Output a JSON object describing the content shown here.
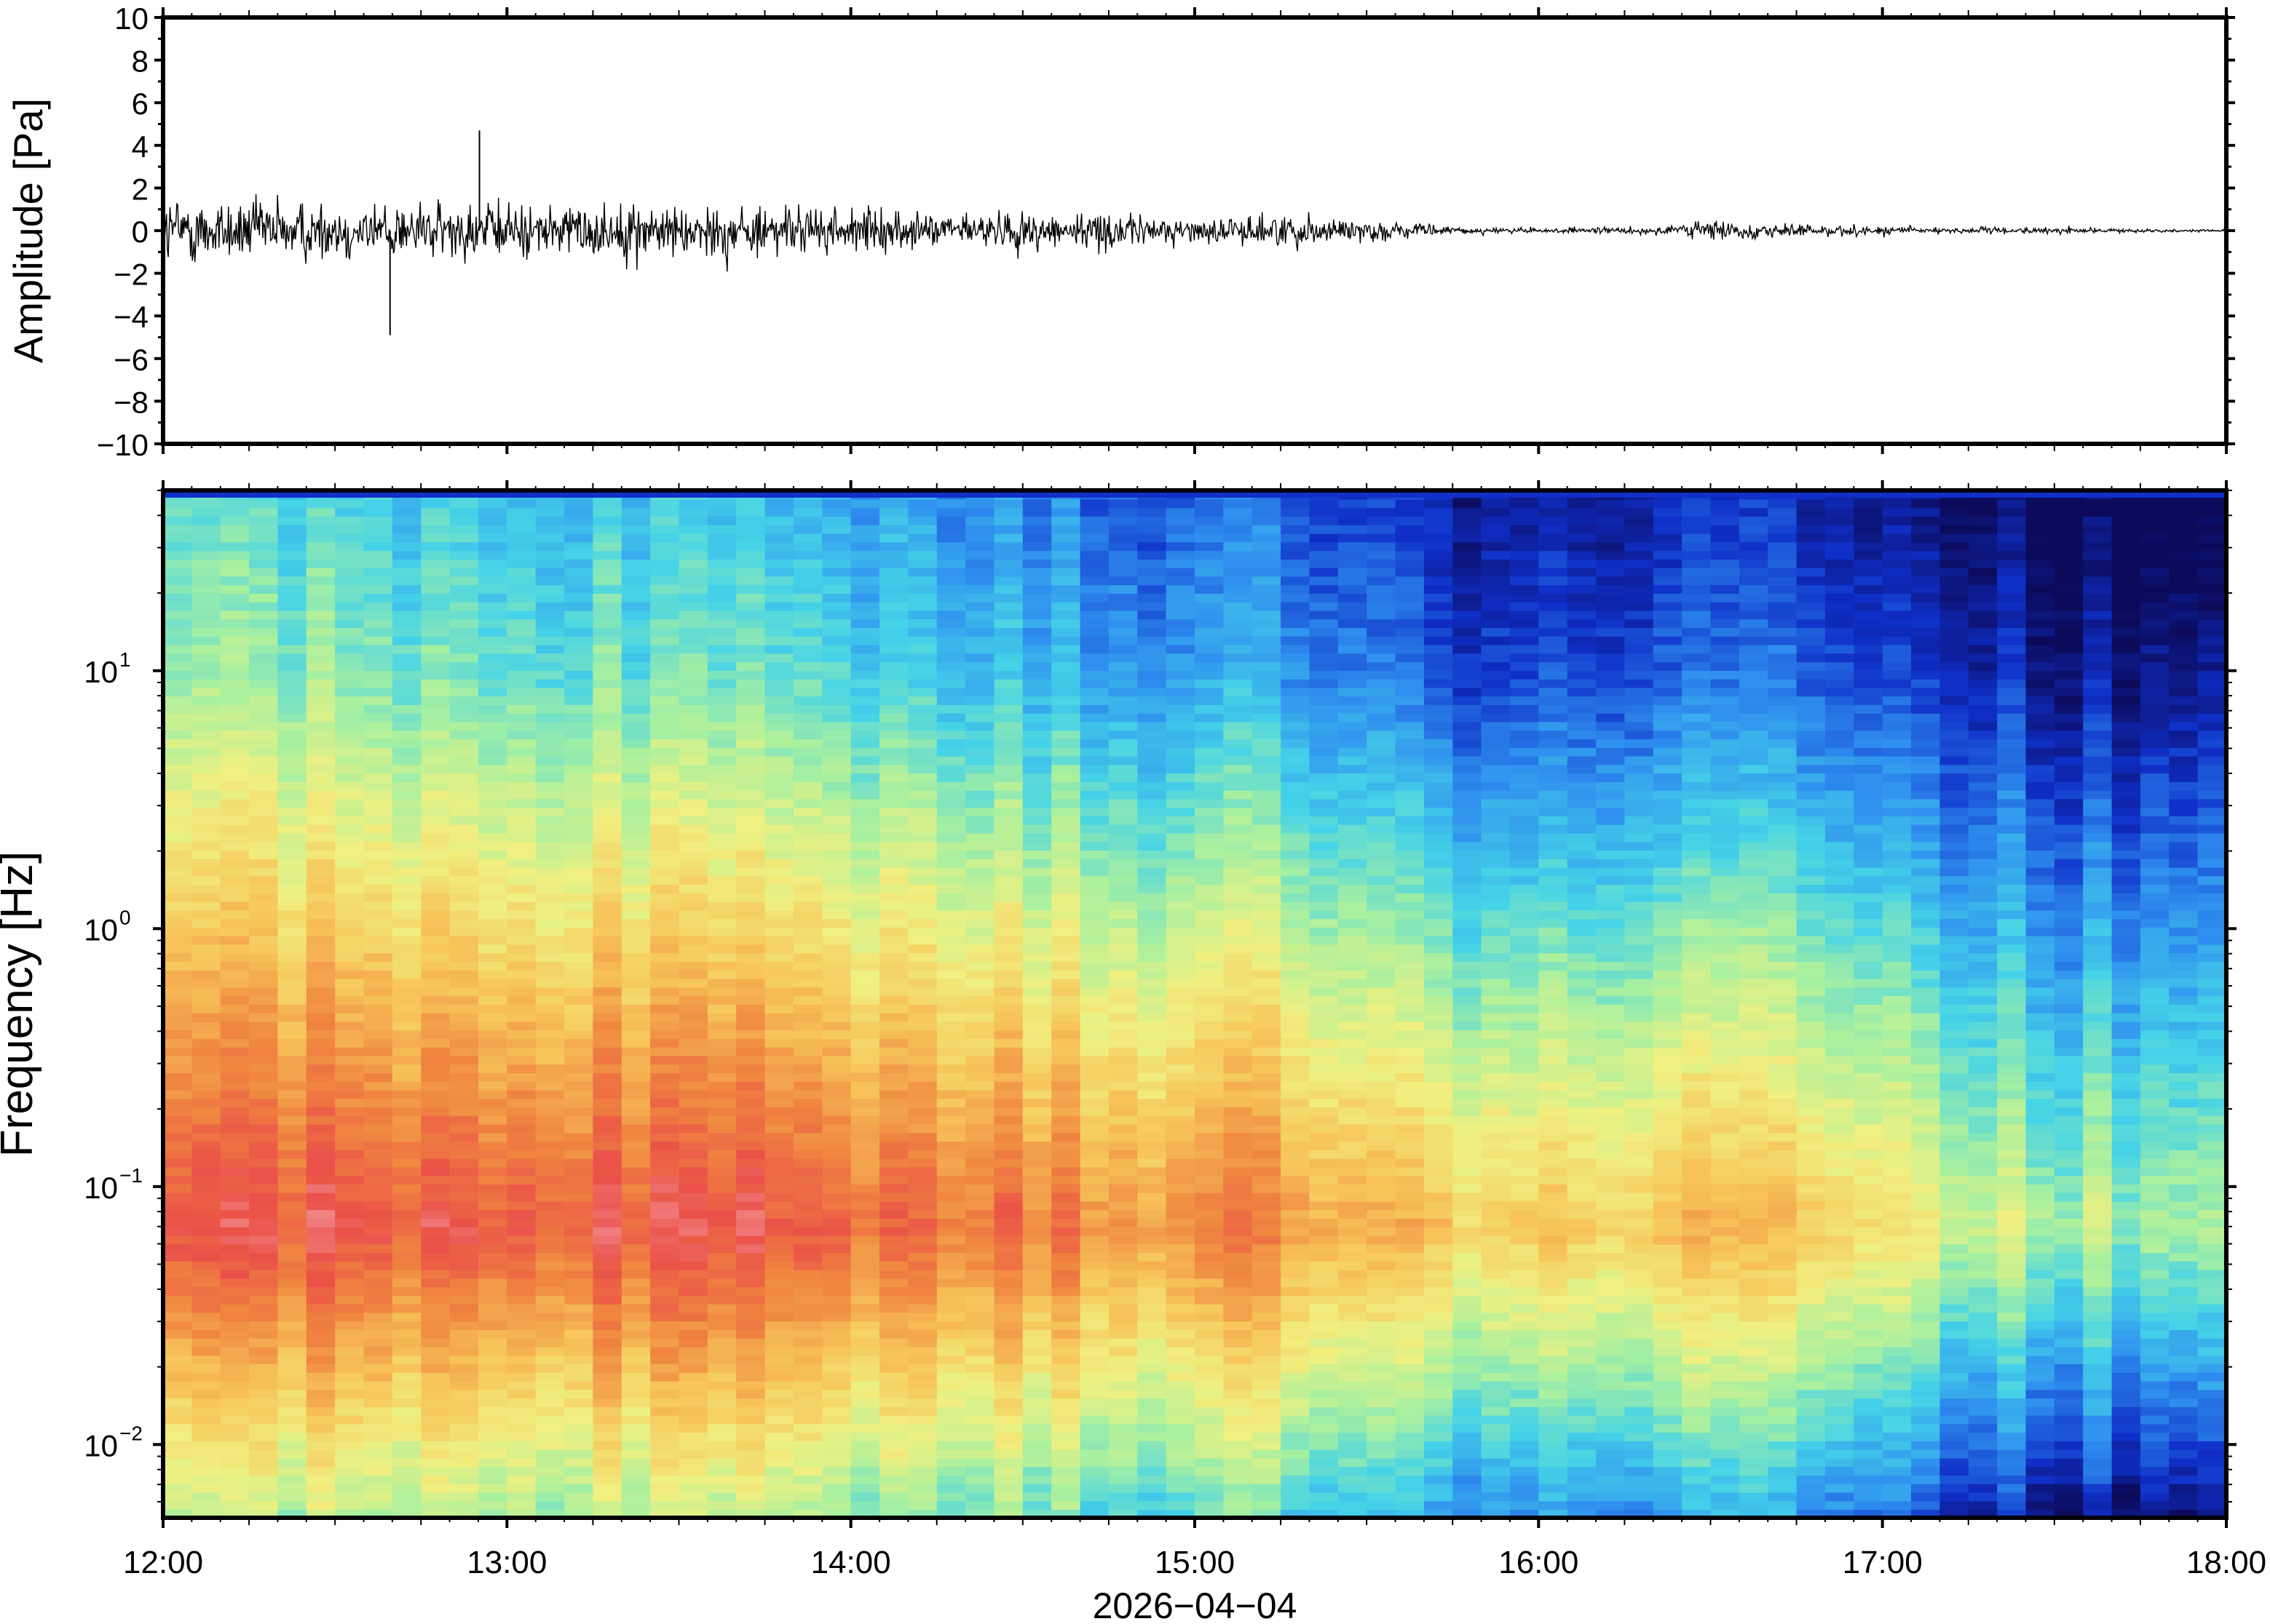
{
  "chart_data": [
    {
      "type": "line",
      "panel": "waveform",
      "title": "",
      "ylabel": "Amplitude [Pa]",
      "ylim": [
        -10,
        10
      ],
      "y_ticks": [
        {
          "value": 10,
          "label": "10"
        },
        {
          "value": 8,
          "label": "8"
        },
        {
          "value": 6,
          "label": "6"
        },
        {
          "value": 4,
          "label": "4"
        },
        {
          "value": 2,
          "label": "2"
        },
        {
          "value": 0,
          "label": "0"
        },
        {
          "value": -2,
          "label": "−2"
        },
        {
          "value": -4,
          "label": "−4"
        },
        {
          "value": -6,
          "label": "−6"
        },
        {
          "value": -8,
          "label": "−8"
        },
        {
          "value": -10,
          "label": "−10"
        }
      ],
      "xlim_hours": [
        12,
        18
      ],
      "series": [
        {
          "color": "#000000",
          "x_hours": [
            12.0,
            12.25,
            12.5,
            12.75,
            12.9,
            13.0,
            13.25,
            13.5,
            13.75,
            14.0,
            14.25,
            14.5,
            14.75,
            15.0,
            15.25,
            15.5,
            15.75,
            16.0,
            16.25,
            16.5,
            16.75,
            17.0,
            17.25,
            17.5,
            17.75,
            18.0
          ],
          "envelope_pa": [
            2.8,
            2.6,
            2.4,
            2.3,
            2.4,
            2.2,
            2.2,
            2.2,
            2.0,
            1.8,
            1.3,
            1.6,
            1.5,
            0.9,
            1.4,
            0.9,
            0.3,
            0.2,
            0.25,
            0.8,
            0.5,
            0.4,
            0.25,
            0.25,
            0.12,
            0.1
          ],
          "peak_max_pa": 4.7,
          "peak_min_pa": -4.9
        }
      ]
    },
    {
      "type": "heatmap",
      "panel": "spectrogram",
      "title": "",
      "ylabel": "Frequency [Hz]",
      "y_scale": "log",
      "ylim_hz": [
        0.0052,
        50
      ],
      "y_ticks": [
        {
          "value": 10,
          "base": "10",
          "exp": "1"
        },
        {
          "value": 1,
          "base": "10",
          "exp": "0"
        },
        {
          "value": 0.1,
          "base": "10",
          "exp": "−1"
        },
        {
          "value": 0.01,
          "base": "10",
          "exp": "−2"
        }
      ],
      "xlabel": "2026−04−04",
      "x_ticks": [
        "12:00",
        "13:00",
        "14:00",
        "15:00",
        "16:00",
        "17:00",
        "18:00"
      ],
      "xlim_hours": [
        12,
        18
      ],
      "colormap": "rainbow (blue = low power, red = high power)",
      "colormap_stops": [
        "#0c0a5a",
        "#0f2fc8",
        "#2f8fef",
        "#45d3e8",
        "#a8f0a0",
        "#f0f080",
        "#f7c45a",
        "#f08840",
        "#ea5048",
        "#f6a0a8"
      ],
      "relative_power_profile": {
        "x_hours": [
          12.0,
          13.0,
          14.0,
          14.5,
          15.0,
          15.5,
          15.75,
          16.0,
          16.5,
          17.0,
          17.25,
          17.5,
          18.0
        ],
        "power_at_0_07hz": [
          0.9,
          0.9,
          0.86,
          0.8,
          0.78,
          0.76,
          0.6,
          0.68,
          0.66,
          0.62,
          0.52,
          0.48,
          0.45
        ],
        "power_at_10hz": [
          0.45,
          0.4,
          0.35,
          0.28,
          0.25,
          0.24,
          0.1,
          0.16,
          0.16,
          0.14,
          0.1,
          0.06,
          0.04
        ]
      }
    }
  ]
}
